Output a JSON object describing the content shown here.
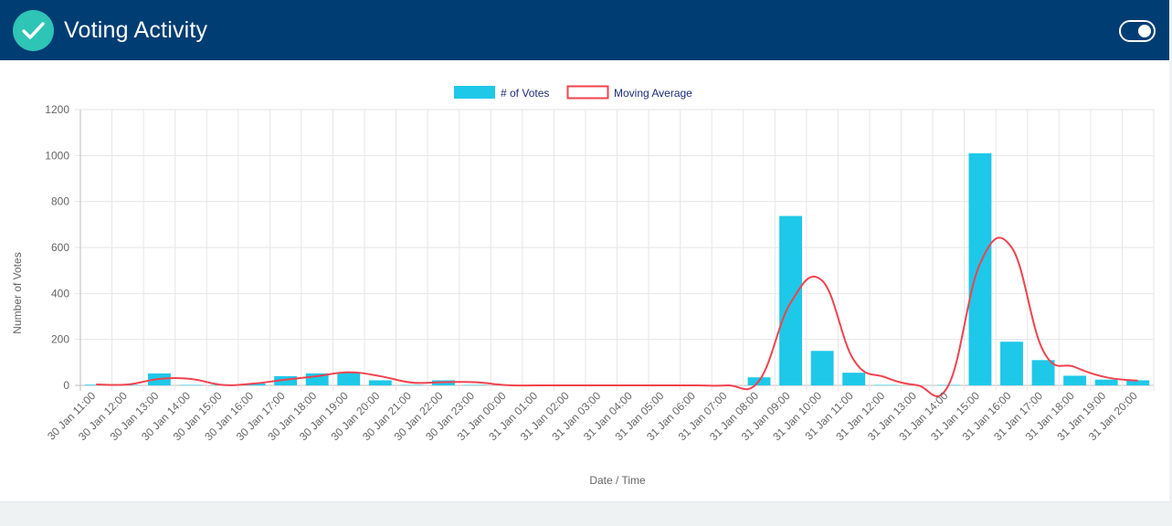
{
  "header": {
    "title": "Voting Activity",
    "background_color": "#003d73",
    "badge_color": "#2ec4b6",
    "badge_icon": "check-icon",
    "toggle_icon": "toggle-switch-icon",
    "toggle_on": true
  },
  "chart_data": {
    "type": "bar",
    "xlabel": "Date / Time",
    "ylabel": "Number of Votes",
    "ylim": [
      0,
      1200
    ],
    "y_ticks": [
      0,
      200,
      400,
      600,
      800,
      1000,
      1200
    ],
    "grid": true,
    "legend_position": "top-center",
    "categories": [
      "30 Jan 11:00",
      "30 Jan 12:00",
      "30 Jan 13:00",
      "30 Jan 14:00",
      "30 Jan 15:00",
      "30 Jan 16:00",
      "30 Jan 17:00",
      "30 Jan 18:00",
      "30 Jan 19:00",
      "30 Jan 20:00",
      "30 Jan 21:00",
      "30 Jan 22:00",
      "30 Jan 23:00",
      "31 Jan 00:00",
      "31 Jan 01:00",
      "31 Jan 02:00",
      "31 Jan 03:00",
      "31 Jan 04:00",
      "31 Jan 05:00",
      "31 Jan 06:00",
      "31 Jan 07:00",
      "31 Jan 08:00",
      "31 Jan 09:00",
      "31 Jan 10:00",
      "31 Jan 11:00",
      "31 Jan 12:00",
      "31 Jan 13:00",
      "31 Jan 14:00",
      "31 Jan 15:00",
      "31 Jan 16:00",
      "31 Jan 17:00",
      "31 Jan 18:00",
      "31 Jan 19:00",
      "31 Jan 20:00"
    ],
    "series": [
      {
        "name": "# of Votes",
        "type": "bar",
        "color": "#1ec8e8",
        "values": [
          3,
          2,
          52,
          2,
          2,
          8,
          40,
          52,
          57,
          22,
          2,
          22,
          2,
          0,
          0,
          0,
          0,
          0,
          0,
          0,
          0,
          35,
          737,
          150,
          55,
          2,
          0,
          2,
          1010,
          190,
          110,
          42,
          25,
          22
        ]
      },
      {
        "name": "Moving Average",
        "type": "line",
        "color": "#f0434f",
        "values": [
          4,
          4,
          28,
          28,
          2,
          8,
          25,
          40,
          57,
          40,
          12,
          14,
          14,
          1,
          0,
          0,
          0,
          0,
          0,
          0,
          0,
          20,
          360,
          455,
          110,
          35,
          1,
          1,
          530,
          600,
          150,
          80,
          35,
          20
        ]
      }
    ]
  }
}
